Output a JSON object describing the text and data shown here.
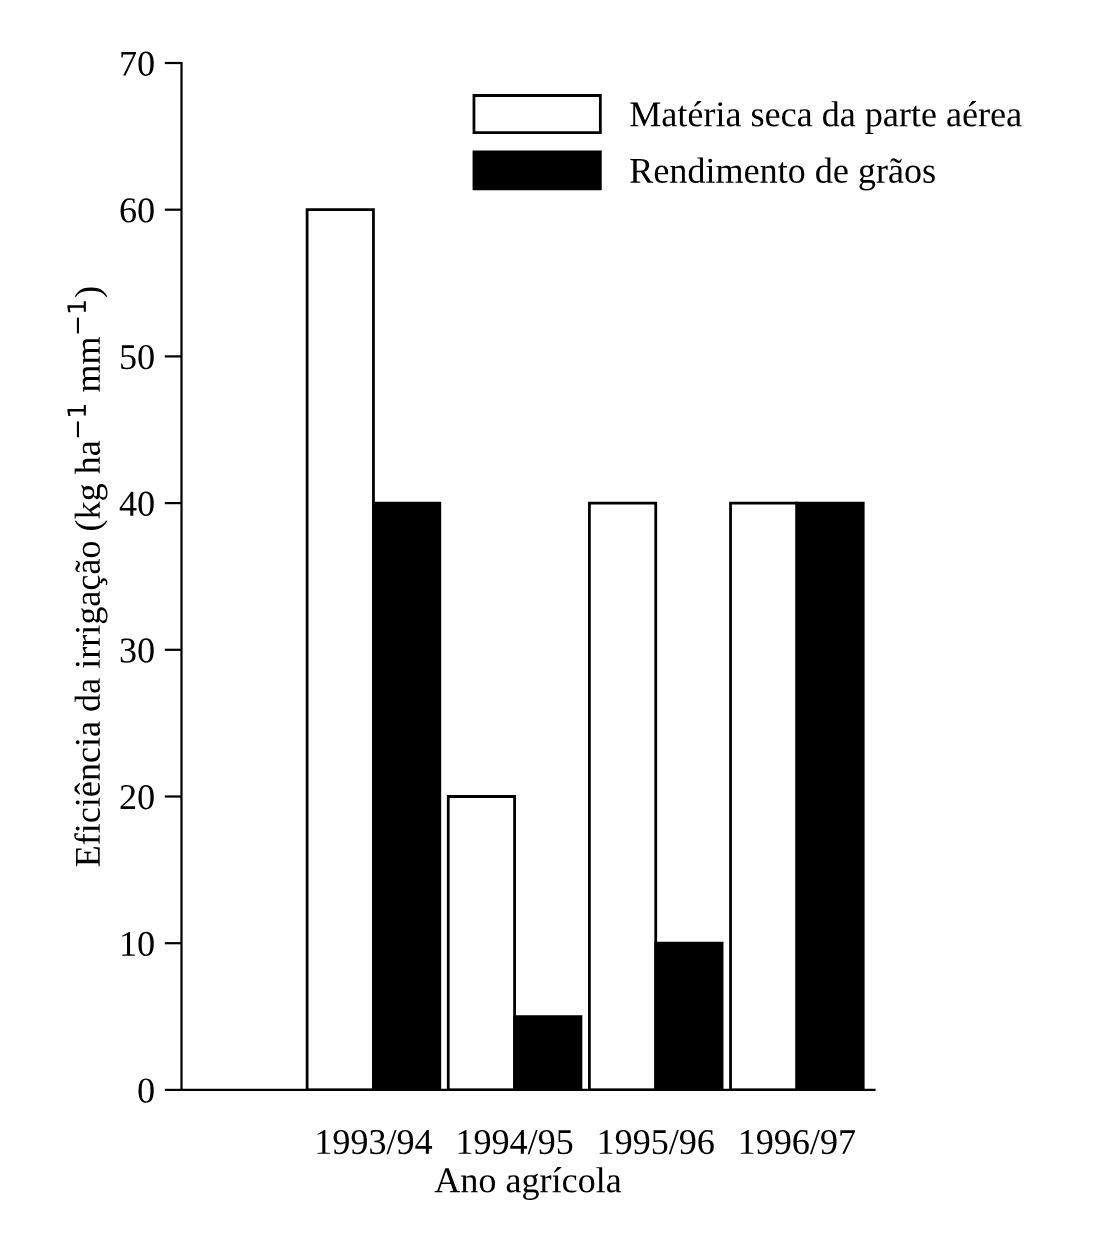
{
  "chart_data": {
    "type": "bar",
    "xlabel": "Ano agrícola",
    "ylabel": "Eficiência da irrigação (kg ha$^{−1}$ mm$^{−1}$)",
    "categories": [
      "1993/94",
      "1994/95",
      "1995/96",
      "1996/97"
    ],
    "series": [
      {
        "name": "Matéria seca da parte aérea",
        "color": "#ffffff",
        "values": [
          60,
          20,
          40,
          40
        ]
      },
      {
        "name": "Rendimento de grãos",
        "color": "#000000",
        "values": [
          40,
          5,
          10,
          40
        ]
      }
    ],
    "ylim": [
      0,
      70
    ],
    "yticks": [
      0,
      10,
      20,
      30,
      40,
      50,
      60,
      70
    ],
    "grid": false,
    "legend": "top right"
  }
}
